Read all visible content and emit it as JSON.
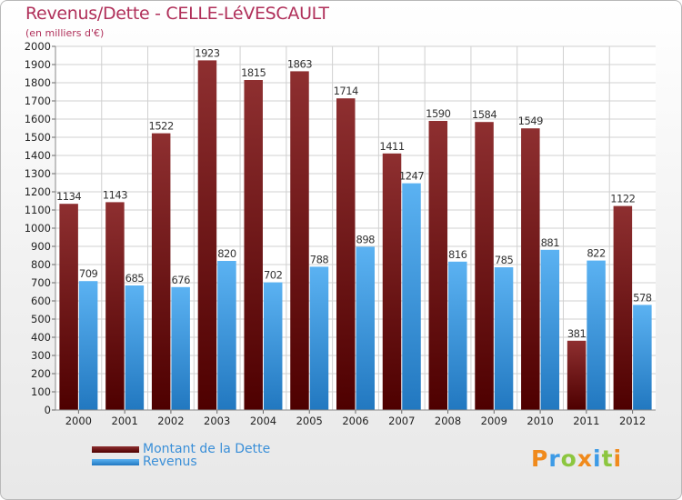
{
  "chart_data": {
    "type": "bar",
    "title": "Revenus/Dette - CELLE-LéVESCAULT",
    "subtitle": "(en milliers d'€)",
    "xlabel": "",
    "ylabel": "",
    "ylim": [
      0,
      2000
    ],
    "ytick_step": 100,
    "grid": true,
    "legend_position": "bottom-left",
    "categories": [
      "2000",
      "2001",
      "2002",
      "2003",
      "2004",
      "2005",
      "2006",
      "2007",
      "2008",
      "2009",
      "2010",
      "2011",
      "2012"
    ],
    "series": [
      {
        "name": "Montant de la Dette",
        "color": "#7b1c1c",
        "values": [
          1134,
          1143,
          1522,
          1923,
          1815,
          1863,
          1714,
          1411,
          1590,
          1584,
          1549,
          381,
          1122
        ]
      },
      {
        "name": "Revenus",
        "color": "#3d9be6",
        "values": [
          709,
          685,
          676,
          820,
          702,
          788,
          898,
          1247,
          816,
          785,
          881,
          822,
          578
        ]
      }
    ]
  },
  "logo": {
    "letters": [
      "P",
      "r",
      "o",
      "x",
      "i",
      "t",
      "i"
    ],
    "colors": [
      "#f08a1c",
      "#3d9be6",
      "#8cc63f",
      "#f08a1c",
      "#3d9be6",
      "#8cc63f",
      "#f08a1c"
    ]
  }
}
